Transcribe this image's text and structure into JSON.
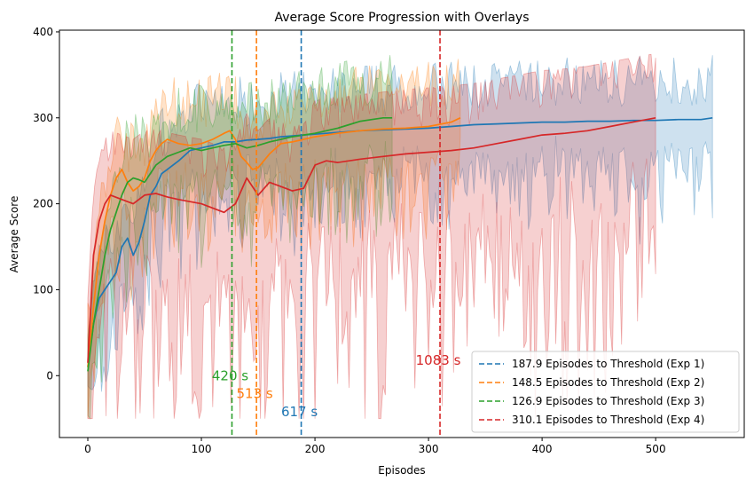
{
  "chart_data": {
    "type": "line",
    "title": "Average Score Progression with Overlays",
    "xlabel": "Episodes",
    "ylabel": "Average Score",
    "xlim": [
      -25,
      578
    ],
    "ylim": [
      -72,
      402
    ],
    "xticks": [
      0,
      100,
      200,
      300,
      400,
      500
    ],
    "yticks": [
      0,
      100,
      200,
      300,
      400
    ],
    "grid": false,
    "legend_position": "lower right",
    "series": [
      {
        "color": "#1f77b4",
        "x": [
          0,
          5,
          10,
          15,
          20,
          25,
          30,
          35,
          40,
          45,
          50,
          55,
          60,
          65,
          70,
          80,
          90,
          100,
          110,
          120,
          130,
          140,
          150,
          160,
          170,
          180,
          190,
          200,
          220,
          240,
          260,
          280,
          300,
          320,
          340,
          360,
          380,
          400,
          420,
          440,
          460,
          480,
          500,
          520,
          540,
          550
        ],
        "values": [
          10,
          60,
          90,
          100,
          110,
          120,
          150,
          160,
          140,
          155,
          180,
          210,
          220,
          235,
          240,
          250,
          262,
          265,
          268,
          272,
          272,
          274,
          275,
          276,
          278,
          279,
          280,
          281,
          283,
          285,
          286,
          287,
          288,
          290,
          292,
          293,
          294,
          295,
          295,
          296,
          296,
          297,
          297,
          298,
          298,
          300
        ]
      },
      {
        "color": "#ff7f0e",
        "x": [
          0,
          5,
          10,
          15,
          20,
          25,
          30,
          35,
          40,
          45,
          50,
          55,
          60,
          65,
          70,
          80,
          90,
          100,
          110,
          120,
          125,
          130,
          135,
          140,
          145,
          150,
          160,
          170,
          180,
          190,
          200,
          220,
          240,
          260,
          280,
          300,
          320,
          328
        ],
        "values": [
          10,
          80,
          140,
          180,
          210,
          230,
          240,
          225,
          215,
          220,
          230,
          250,
          262,
          270,
          275,
          270,
          268,
          270,
          275,
          282,
          285,
          275,
          255,
          248,
          240,
          242,
          258,
          270,
          272,
          275,
          278,
          282,
          285,
          287,
          288,
          290,
          295,
          300
        ]
      },
      {
        "color": "#2ca02c",
        "x": [
          0,
          5,
          10,
          15,
          20,
          25,
          30,
          35,
          40,
          45,
          50,
          60,
          70,
          80,
          90,
          100,
          110,
          120,
          130,
          140,
          150,
          160,
          170,
          180,
          190,
          200,
          210,
          220,
          230,
          240,
          250,
          260,
          268
        ],
        "values": [
          5,
          60,
          100,
          140,
          170,
          190,
          210,
          225,
          230,
          228,
          225,
          245,
          255,
          260,
          265,
          262,
          265,
          268,
          270,
          265,
          268,
          272,
          275,
          278,
          280,
          282,
          285,
          288,
          292,
          296,
          298,
          300,
          300
        ]
      },
      {
        "color": "#d62728",
        "x": [
          0,
          5,
          10,
          15,
          20,
          30,
          40,
          50,
          60,
          70,
          80,
          100,
          110,
          120,
          130,
          140,
          150,
          160,
          170,
          180,
          190,
          200,
          210,
          220,
          240,
          260,
          280,
          300,
          320,
          340,
          360,
          380,
          400,
          420,
          440,
          460,
          480,
          500
        ],
        "values": [
          15,
          140,
          180,
          200,
          210,
          205,
          200,
          210,
          212,
          208,
          205,
          200,
          195,
          190,
          200,
          230,
          210,
          225,
          220,
          215,
          218,
          245,
          250,
          248,
          252,
          255,
          258,
          260,
          262,
          265,
          270,
          275,
          280,
          282,
          285,
          290,
          295,
          300
        ]
      }
    ],
    "vlines": [
      {
        "x": 187.9,
        "color": "#1f77b4",
        "legend": "187.9 Episodes to Threshold (Exp 1)",
        "annotation": "617 s",
        "annotation_y": -42
      },
      {
        "x": 148.5,
        "color": "#ff7f0e",
        "legend": "148.5 Episodes to Threshold (Exp 2)",
        "annotation": "513 s",
        "annotation_y": -21
      },
      {
        "x": 126.9,
        "color": "#2ca02c",
        "legend": "126.9 Episodes to Threshold (Exp 3)",
        "annotation": "420 s",
        "annotation_y": 0
      },
      {
        "x": 310.1,
        "color": "#d62728",
        "legend": "310.1 Episodes to Threshold (Exp 4)",
        "annotation": "1083 s",
        "annotation_y": 18
      }
    ]
  }
}
